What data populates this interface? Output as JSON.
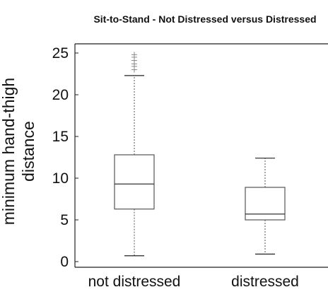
{
  "chart_data": {
    "type": "box",
    "title": "Sit-to-Stand - Not Distressed versus Distressed",
    "xlabel": "",
    "ylabel": "minimum hand-thigh distance",
    "ylabel_lines": [
      "minimum hand-thigh",
      "distance"
    ],
    "ylim": [
      0,
      26
    ],
    "yticks": [
      0,
      5,
      10,
      15,
      20,
      25
    ],
    "grid": false,
    "categories": [
      "not distressed",
      "distressed"
    ],
    "boxes": [
      {
        "name": "not distressed",
        "whisker_low": 0.7,
        "q1": 6.3,
        "median": 9.3,
        "q3": 12.8,
        "whisker_high": 22.3,
        "outliers": [
          23.0,
          23.4,
          23.7,
          24.1,
          24.5,
          24.8
        ]
      },
      {
        "name": "distressed",
        "whisker_low": 0.9,
        "q1": 5.0,
        "median": 5.7,
        "q3": 8.9,
        "whisker_high": 12.4,
        "outliers": []
      }
    ],
    "colors": {
      "box": "#555555",
      "axis": "#222222",
      "median": "#333333"
    }
  }
}
